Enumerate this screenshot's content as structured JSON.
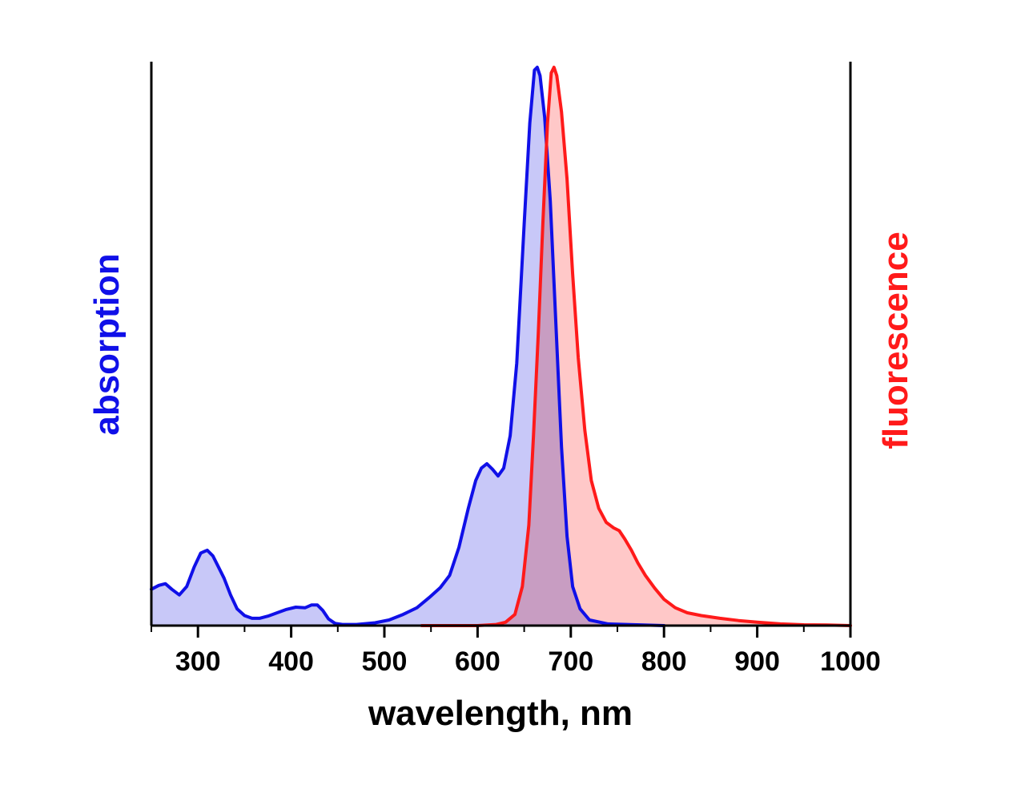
{
  "chart_data": {
    "type": "area",
    "title": "",
    "xlabel": "wavelength, nm",
    "ylabel_left": "absorption",
    "ylabel_right": "fluorescence",
    "xlim": [
      250,
      1000
    ],
    "ylim": [
      0,
      1
    ],
    "x_ticks": [
      300,
      400,
      500,
      600,
      700,
      800,
      900,
      1000
    ],
    "grid": false,
    "colors": {
      "absorption_line": "#1010e8",
      "absorption_fill": "#c8c8f8",
      "fluorescence_line": "#ff1a1a",
      "fluorescence_fill": "#ffc8c8"
    },
    "series": [
      {
        "key": "absorption",
        "points": [
          [
            250,
            0.065
          ],
          [
            258,
            0.072
          ],
          [
            265,
            0.075
          ],
          [
            272,
            0.065
          ],
          [
            280,
            0.055
          ],
          [
            288,
            0.07
          ],
          [
            296,
            0.105
          ],
          [
            303,
            0.13
          ],
          [
            310,
            0.135
          ],
          [
            316,
            0.125
          ],
          [
            322,
            0.105
          ],
          [
            328,
            0.085
          ],
          [
            335,
            0.055
          ],
          [
            342,
            0.03
          ],
          [
            350,
            0.018
          ],
          [
            358,
            0.013
          ],
          [
            366,
            0.013
          ],
          [
            375,
            0.017
          ],
          [
            385,
            0.023
          ],
          [
            395,
            0.029
          ],
          [
            405,
            0.033
          ],
          [
            415,
            0.032
          ],
          [
            422,
            0.037
          ],
          [
            428,
            0.037
          ],
          [
            434,
            0.027
          ],
          [
            440,
            0.012
          ],
          [
            447,
            0.004
          ],
          [
            455,
            0.002
          ],
          [
            470,
            0.002
          ],
          [
            490,
            0.005
          ],
          [
            505,
            0.01
          ],
          [
            520,
            0.02
          ],
          [
            535,
            0.032
          ],
          [
            548,
            0.05
          ],
          [
            560,
            0.068
          ],
          [
            570,
            0.09
          ],
          [
            580,
            0.14
          ],
          [
            590,
            0.21
          ],
          [
            598,
            0.26
          ],
          [
            604,
            0.282
          ],
          [
            610,
            0.29
          ],
          [
            616,
            0.28
          ],
          [
            622,
            0.268
          ],
          [
            628,
            0.282
          ],
          [
            635,
            0.34
          ],
          [
            642,
            0.47
          ],
          [
            650,
            0.72
          ],
          [
            656,
            0.9
          ],
          [
            661,
            0.995
          ],
          [
            664,
            1.0
          ],
          [
            667,
            0.985
          ],
          [
            672,
            0.91
          ],
          [
            678,
            0.76
          ],
          [
            684,
            0.54
          ],
          [
            690,
            0.32
          ],
          [
            696,
            0.16
          ],
          [
            702,
            0.07
          ],
          [
            710,
            0.03
          ],
          [
            720,
            0.01
          ],
          [
            740,
            0.003
          ],
          [
            800,
            0.0
          ]
        ]
      },
      {
        "key": "fluorescence",
        "points": [
          [
            540,
            0.0
          ],
          [
            600,
            0.0
          ],
          [
            620,
            0.002
          ],
          [
            630,
            0.006
          ],
          [
            640,
            0.02
          ],
          [
            648,
            0.07
          ],
          [
            655,
            0.18
          ],
          [
            660,
            0.34
          ],
          [
            665,
            0.52
          ],
          [
            670,
            0.72
          ],
          [
            675,
            0.9
          ],
          [
            679,
            0.99
          ],
          [
            682,
            1.0
          ],
          [
            685,
            0.985
          ],
          [
            690,
            0.92
          ],
          [
            696,
            0.8
          ],
          [
            702,
            0.63
          ],
          [
            708,
            0.48
          ],
          [
            715,
            0.35
          ],
          [
            722,
            0.26
          ],
          [
            730,
            0.21
          ],
          [
            738,
            0.185
          ],
          [
            746,
            0.175
          ],
          [
            752,
            0.17
          ],
          [
            758,
            0.155
          ],
          [
            765,
            0.135
          ],
          [
            772,
            0.112
          ],
          [
            780,
            0.09
          ],
          [
            790,
            0.067
          ],
          [
            800,
            0.047
          ],
          [
            812,
            0.032
          ],
          [
            825,
            0.023
          ],
          [
            840,
            0.018
          ],
          [
            860,
            0.013
          ],
          [
            880,
            0.009
          ],
          [
            900,
            0.006
          ],
          [
            925,
            0.003
          ],
          [
            950,
            0.0015
          ],
          [
            975,
            0.001
          ],
          [
            1000,
            0.0
          ]
        ]
      }
    ]
  }
}
